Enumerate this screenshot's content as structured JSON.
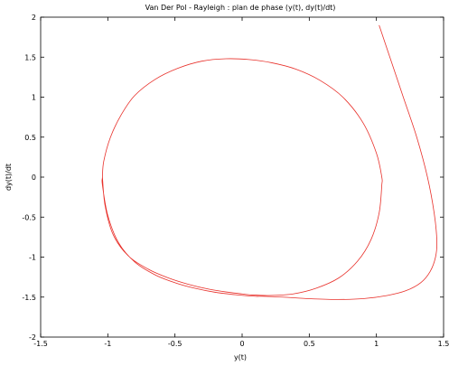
{
  "chart_data": {
    "type": "line",
    "title": "Van Der Pol - Rayleigh : plan de phase (y(t), dy(t)/dt)",
    "xlabel": "y(t)",
    "ylabel": "dy(t)/dt",
    "xlim": [
      -1.5,
      1.5
    ],
    "ylim": [
      -2,
      2
    ],
    "xticks": [
      "-1.5",
      "-1",
      "-0.5",
      "0",
      "0.5",
      "1",
      "1.5"
    ],
    "yticks": [
      "-2",
      "-1.5",
      "-1",
      "-0.5",
      "0",
      "0.5",
      "1",
      "1.5",
      "2"
    ],
    "grid": false,
    "series": [
      {
        "color": "#e8302a",
        "x": [
          1.02,
          1.1,
          1.2,
          1.3,
          1.38,
          1.43,
          1.45,
          1.44,
          1.4,
          1.33,
          1.22,
          1.08,
          0.9,
          0.7,
          0.5,
          0.3,
          0.15,
          0.1,
          -0.05,
          -0.2,
          -0.35,
          -0.5,
          -0.65,
          -0.8,
          -0.92,
          -1.0,
          -1.04,
          -1.04,
          -1.03,
          -0.98,
          -0.9,
          -0.8,
          -0.65,
          -0.48,
          -0.3,
          -0.12,
          0.05,
          0.22,
          0.4,
          0.58,
          0.75,
          0.9,
          1.0,
          1.04,
          1.04,
          1.02,
          0.96,
          0.86,
          0.72,
          0.55,
          0.38,
          0.2,
          0.05,
          0.0,
          -0.1,
          -0.25,
          -0.4,
          -0.55,
          -0.7,
          -0.85,
          -0.96,
          -1.02,
          -1.04
        ],
        "y": [
          1.9,
          1.5,
          1.0,
          0.5,
          0.0,
          -0.45,
          -0.8,
          -1.0,
          -1.18,
          -1.32,
          -1.42,
          -1.48,
          -1.52,
          -1.53,
          -1.52,
          -1.5,
          -1.49,
          -1.49,
          -1.47,
          -1.44,
          -1.39,
          -1.32,
          -1.22,
          -1.06,
          -0.82,
          -0.48,
          -0.1,
          0.0,
          0.2,
          0.5,
          0.78,
          1.02,
          1.22,
          1.36,
          1.45,
          1.48,
          1.47,
          1.43,
          1.35,
          1.21,
          1.0,
          0.68,
          0.3,
          0.0,
          -0.1,
          -0.45,
          -0.78,
          -1.05,
          -1.26,
          -1.39,
          -1.46,
          -1.48,
          -1.47,
          -1.46,
          -1.44,
          -1.4,
          -1.34,
          -1.26,
          -1.15,
          -0.98,
          -0.72,
          -0.36,
          0.0
        ]
      }
    ]
  }
}
